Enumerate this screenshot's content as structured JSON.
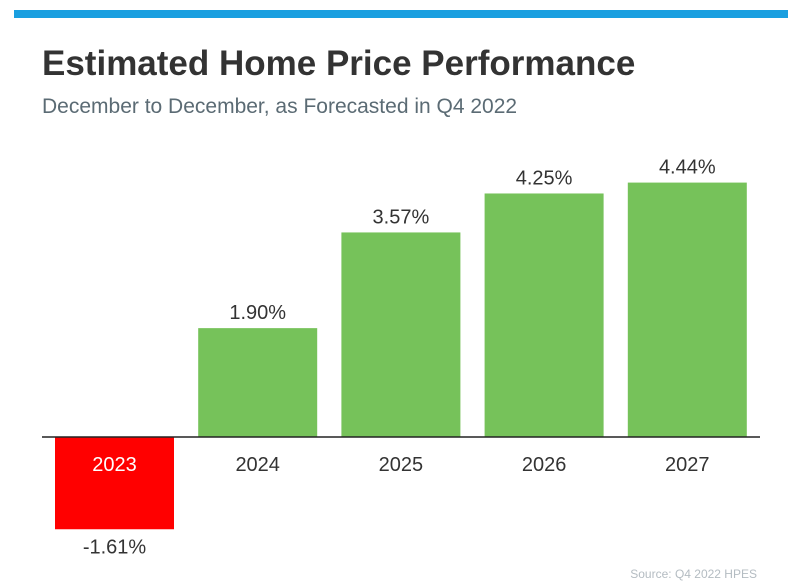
{
  "title": "Estimated Home Price Performance",
  "subtitle": "December to December, as Forecasted in Q4 2022",
  "source": "Source: Q4 2022 HPES",
  "colors": {
    "top_bar": "#1a9fe0",
    "positive": "#76c25a",
    "negative": "#ff0000",
    "axis": "#222222",
    "label": "#333333",
    "negative_category_text": "#ffffff"
  },
  "chart_data": {
    "type": "bar",
    "categories": [
      "2023",
      "2024",
      "2025",
      "2026",
      "2027"
    ],
    "values": [
      -1.61,
      1.9,
      3.57,
      4.25,
      4.44
    ],
    "data_labels": [
      "-1.61%",
      "1.90%",
      "3.57%",
      "4.25%",
      "4.44%"
    ],
    "title": "Estimated Home Price Performance",
    "subtitle": "December to December, as Forecasted in Q4 2022",
    "xlabel": "",
    "ylabel": "",
    "unit": "%",
    "grid": false,
    "legend": "none"
  }
}
